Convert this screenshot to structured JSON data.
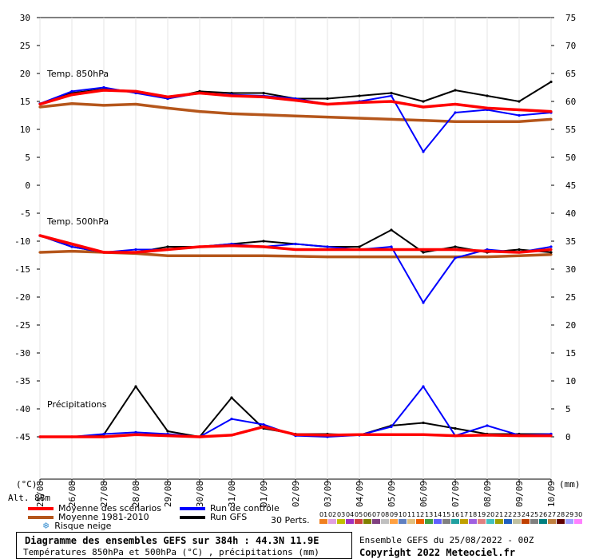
{
  "chart_data": {
    "type": "line",
    "title": "Diagramme des ensembles GEFS sur 384h : 44.3N 11.9E",
    "subtitle": "Températures 850hPa et 500hPa (°C) , précipitations (mm)",
    "x": [
      "25/08",
      "26/08",
      "27/08",
      "28/08",
      "29/08",
      "30/08",
      "31/08",
      "01/09",
      "02/09",
      "03/09",
      "04/09",
      "05/09",
      "06/09",
      "07/09",
      "08/09",
      "09/09",
      "10/09"
    ],
    "left_axis": {
      "unit": "(°C)",
      "ticks": [
        30,
        25,
        20,
        15,
        10,
        5,
        0,
        -5,
        -10,
        -15,
        -20,
        -25,
        -30,
        -35,
        -40,
        -45
      ]
    },
    "right_axis": {
      "unit": "(mm)",
      "ticks": [
        75,
        70,
        65,
        60,
        55,
        50,
        45,
        40,
        35,
        30,
        25,
        20,
        15,
        10,
        5,
        0
      ]
    },
    "altitude_label": "Alt. 88m",
    "panels": [
      {
        "label": "Temp. 850hPa",
        "series": [
          {
            "name": "Moyenne des scénarios",
            "color": "#ff0000",
            "values": [
              14.5,
              16.2,
              17.0,
              16.8,
              15.8,
              16.5,
              16.0,
              15.8,
              15.2,
              14.5,
              14.8,
              15.0,
              14.0,
              14.5,
              13.8,
              13.5,
              13.2
            ]
          },
          {
            "name": "Moyenne 1981-2010",
            "color": "#b5561b",
            "values": [
              14.0,
              14.6,
              14.3,
              14.5,
              13.8,
              13.2,
              12.8,
              12.6,
              12.4,
              12.2,
              12.0,
              11.8,
              11.6,
              11.4,
              11.4,
              11.4,
              11.8
            ]
          },
          {
            "name": "Run de contrôle",
            "color": "#0000ff",
            "values": [
              14.6,
              16.8,
              17.5,
              16.5,
              15.5,
              16.5,
              16.2,
              16.0,
              15.5,
              14.5,
              15.0,
              16.0,
              6.0,
              13.0,
              13.5,
              12.5,
              13.0
            ]
          },
          {
            "name": "Run GFS",
            "color": "#000000",
            "values": [
              14.6,
              16.5,
              17.2,
              16.8,
              15.5,
              16.8,
              16.5,
              16.5,
              15.5,
              15.5,
              16.0,
              16.5,
              15.0,
              17.0,
              16.0,
              15.0,
              18.5
            ]
          }
        ]
      },
      {
        "label": "Temp. 500hPa",
        "series": [
          {
            "name": "Moyenne des scénarios",
            "color": "#ff0000",
            "values": [
              -9.0,
              -10.5,
              -12.0,
              -12.0,
              -11.5,
              -11.0,
              -10.8,
              -11.0,
              -11.5,
              -11.5,
              -11.5,
              -11.5,
              -11.5,
              -11.5,
              -11.8,
              -12.0,
              -11.5
            ]
          },
          {
            "name": "Moyenne 1981-2010",
            "color": "#b5561b",
            "values": [
              -12.0,
              -11.8,
              -12.0,
              -12.2,
              -12.6,
              -12.6,
              -12.6,
              -12.6,
              -12.7,
              -12.8,
              -12.8,
              -12.8,
              -12.8,
              -12.8,
              -12.8,
              -12.6,
              -12.4
            ]
          },
          {
            "name": "Run de contrôle",
            "color": "#0000ff",
            "values": [
              -9.0,
              -11.0,
              -12.0,
              -11.5,
              -11.5,
              -11.0,
              -10.5,
              -11.0,
              -10.5,
              -11.0,
              -11.5,
              -11.0,
              -21.0,
              -13.0,
              -11.5,
              -12.0,
              -11.0
            ]
          },
          {
            "name": "Run GFS",
            "color": "#000000",
            "values": [
              -9.0,
              -11.0,
              -12.0,
              -12.0,
              -11.0,
              -11.0,
              -10.5,
              -10.0,
              -10.5,
              -11.0,
              -11.0,
              -8.0,
              -12.0,
              -11.0,
              -12.0,
              -11.5,
              -12.0
            ]
          }
        ]
      },
      {
        "label": "Précipitations",
        "series": [
          {
            "name": "Moyenne des scénarios",
            "color": "#ff0000",
            "values": [
              0,
              0,
              0,
              0.4,
              0.2,
              0,
              0.3,
              1.8,
              0.4,
              0.3,
              0.4,
              0.4,
              0.4,
              0.2,
              0.3,
              0.2,
              0.2
            ]
          },
          {
            "name": "Run de contrôle",
            "color": "#0000ff",
            "values": [
              0,
              0,
              0.5,
              0.8,
              0.5,
              0,
              3.2,
              2.2,
              0.2,
              0,
              0.3,
              1.8,
              9.0,
              0.2,
              2.0,
              0.3,
              0.5
            ]
          },
          {
            "name": "Run GFS",
            "color": "#000000",
            "values": [
              0,
              0,
              0.4,
              9.0,
              1.0,
              0,
              7.0,
              1.5,
              0.5,
              0.5,
              0.3,
              2.0,
              2.5,
              1.5,
              0.5,
              0.5,
              0.5
            ]
          }
        ]
      }
    ],
    "grid": true
  },
  "legend": {
    "mean": "Moyenne des scénarios",
    "clim": "Moyenne 1981-2010",
    "snow": "Risque neige",
    "control": "Run de contrôle",
    "gfs": "Run GFS",
    "perts": "30 Perts.",
    "pert_ids": [
      "01",
      "02",
      "03",
      "04",
      "05",
      "06",
      "07",
      "08",
      "09",
      "10",
      "11",
      "12",
      "13",
      "14",
      "15",
      "16",
      "17",
      "18",
      "19",
      "20",
      "21",
      "22",
      "23",
      "24",
      "25",
      "26",
      "27",
      "28",
      "29",
      "30"
    ],
    "pert_colors": [
      "#f08020",
      "#e0a0e0",
      "#c0c000",
      "#a030c0",
      "#d04040",
      "#808000",
      "#804080",
      "#c0c0c0",
      "#ffa040",
      "#6080c0",
      "#e0c080",
      "#f06000",
      "#40a040",
      "#6060ff",
      "#808080",
      "#20a0a0",
      "#c0a000",
      "#a060e0",
      "#e08080",
      "#40c0c0",
      "#a0a000",
      "#2060c0",
      "#c0c0a0",
      "#c04000",
      "#808080",
      "#008080",
      "#c08040",
      "#600000",
      "#a0a0ff",
      "#ff80ff"
    ]
  },
  "footer": {
    "title": "Diagramme des ensembles GEFS sur 384h : 44.3N 11.9E",
    "subtitle": "Températures 850hPa et 500hPa (°C) , précipitations (mm)",
    "ensemble": "Ensemble GEFS du 25/08/2022 - 00Z",
    "copyright": "Copyright 2022 Meteociel.fr"
  }
}
